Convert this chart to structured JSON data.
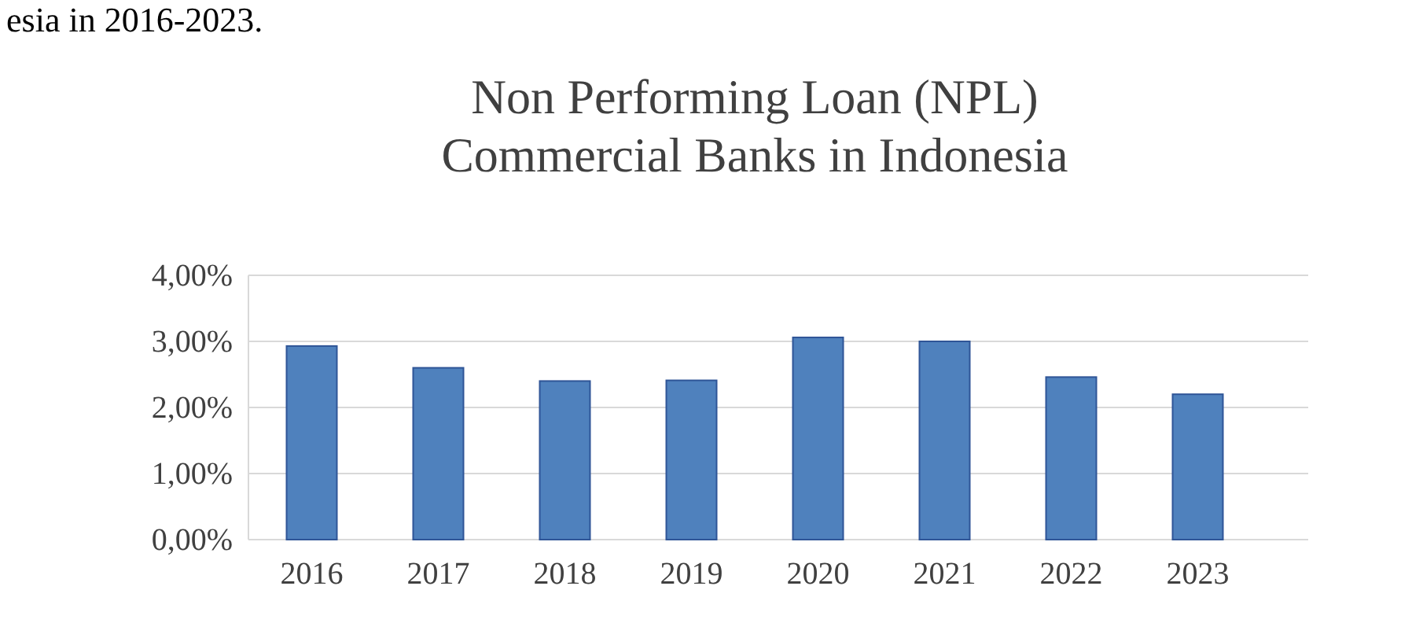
{
  "chart_data": {
    "type": "bar",
    "title": "Non Performing Loan (NPL)\nCommercial Banks in Indonesia",
    "annotations": [
      "esia in 2016-2023."
    ],
    "categories": [
      "2016",
      "2017",
      "2018",
      "2019",
      "2020",
      "2021",
      "2022",
      "2023"
    ],
    "values": [
      2.93,
      2.6,
      2.4,
      2.41,
      3.06,
      3.0,
      2.46,
      2.2
    ],
    "color": "#4f81bd",
    "ylim": [
      0,
      4
    ],
    "yticks": [
      {
        "value": 0,
        "label": "0,00%"
      },
      {
        "value": 1,
        "label": "1,00%"
      },
      {
        "value": 2,
        "label": "2,00%"
      },
      {
        "value": 3,
        "label": "3,00%"
      },
      {
        "value": 4,
        "label": "4,00%"
      }
    ],
    "grid": "y"
  }
}
